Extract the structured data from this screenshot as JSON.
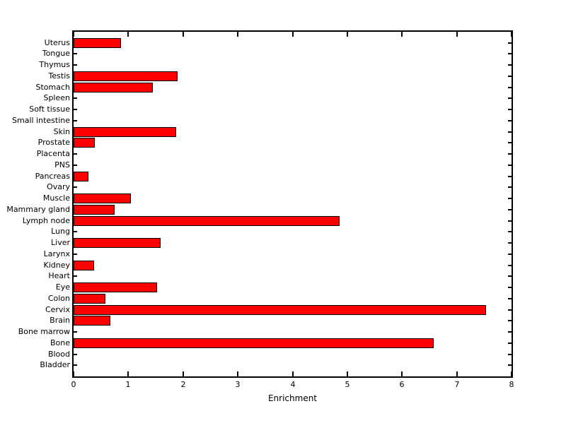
{
  "chart_data": {
    "type": "bar",
    "orientation": "horizontal",
    "title": "",
    "xlabel": "Enrichment",
    "ylabel": "",
    "xlim": [
      0,
      8
    ],
    "xticks": [
      "0",
      "1",
      "2",
      "3",
      "4",
      "5",
      "6",
      "7",
      "8"
    ],
    "grid": false,
    "legend": null,
    "bar_color": "#ff0000",
    "bar_edge_color": "#000000",
    "axis_color": "#000000",
    "background": "#ffffff",
    "categories": [
      "Uterus",
      "Tongue",
      "Thymus",
      "Testis",
      "Stomach",
      "Spleen",
      "Soft tissue",
      "Small intestine",
      "Skin",
      "Prostate",
      "Placenta",
      "PNS",
      "Pancreas",
      "Ovary",
      "Muscle",
      "Mammary gland",
      "Lymph node",
      "Lung",
      "Liver",
      "Larynx",
      "Kidney",
      "Heart",
      "Eye",
      "Colon",
      "Cervix",
      "Brain",
      "Bone marrow",
      "Bone",
      "Blood",
      "Bladder"
    ],
    "values": [
      0.86,
      0,
      0,
      1.9,
      1.45,
      0,
      0,
      0,
      1.88,
      0.39,
      0,
      0,
      0.27,
      0,
      1.05,
      0.75,
      4.86,
      0,
      1.59,
      0,
      0.37,
      0,
      1.53,
      0.58,
      7.53,
      0.67,
      0,
      6.58,
      0,
      0
    ]
  }
}
